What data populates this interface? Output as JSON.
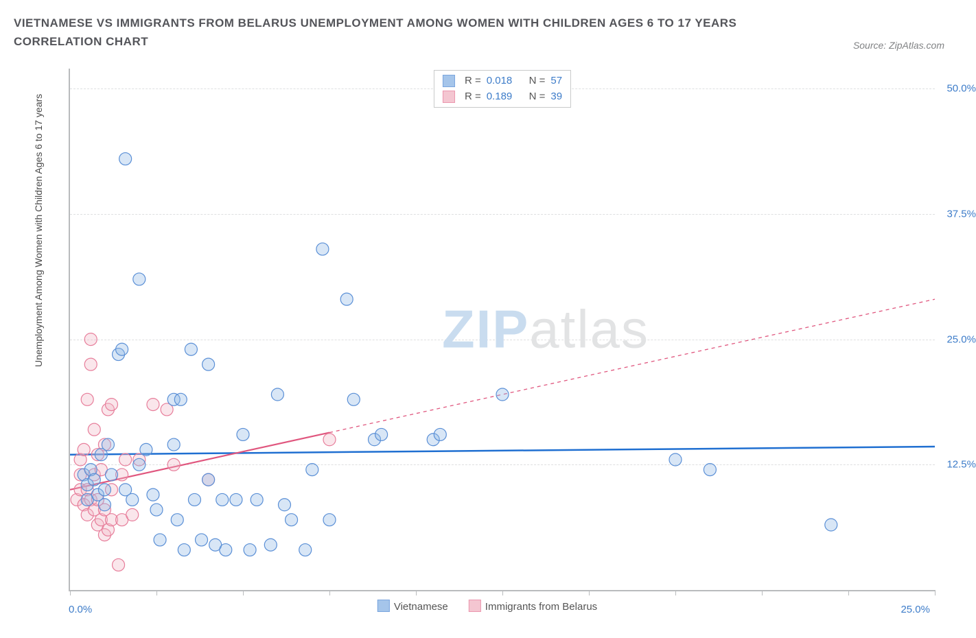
{
  "title_line1": "VIETNAMESE VS IMMIGRANTS FROM BELARUS UNEMPLOYMENT AMONG WOMEN WITH CHILDREN AGES 6 TO 17 YEARS",
  "title_line2": "CORRELATION CHART",
  "source_label": "Source: ZipAtlas.com",
  "y_axis_label": "Unemployment Among Women with Children Ages 6 to 17 years",
  "watermark_zip": "ZIP",
  "watermark_atlas": "atlas",
  "chart": {
    "type": "scatter",
    "xlim": [
      0,
      25
    ],
    "ylim": [
      0,
      52
    ],
    "x_tick_left": "0.0%",
    "x_tick_right": "25.0%",
    "x_minor_ticks": [
      0,
      2.5,
      5,
      7.5,
      10,
      12.5,
      15,
      17.5,
      20,
      22.5,
      25
    ],
    "y_ticks": [
      {
        "v": 12.5,
        "label": "12.5%"
      },
      {
        "v": 25.0,
        "label": "25.0%"
      },
      {
        "v": 37.5,
        "label": "37.5%"
      },
      {
        "v": 50.0,
        "label": "50.0%"
      }
    ],
    "grid_color": "#dedfe0",
    "axis_color": "#b9bbbd",
    "background": "#ffffff",
    "marker_radius": 9,
    "marker_stroke_width": 1.2,
    "marker_fill_opacity": 0.35,
    "series": [
      {
        "name": "Vietnamese",
        "color_fill": "#8fb7e6",
        "color_stroke": "#5a8fd6",
        "r_value": "0.018",
        "n_value": "57",
        "trend": {
          "x1": 0,
          "y1": 13.5,
          "x2": 25,
          "y2": 14.3,
          "solid_until_x": 25,
          "color": "#1f6fd1",
          "width": 2.5
        },
        "points": [
          [
            0.4,
            11.5
          ],
          [
            0.5,
            9.0
          ],
          [
            0.5,
            10.5
          ],
          [
            0.6,
            12.0
          ],
          [
            0.7,
            11.0
          ],
          [
            0.8,
            9.5
          ],
          [
            0.9,
            13.5
          ],
          [
            1.0,
            10.0
          ],
          [
            1.0,
            8.5
          ],
          [
            1.1,
            14.5
          ],
          [
            1.2,
            11.5
          ],
          [
            1.4,
            23.5
          ],
          [
            1.5,
            24.0
          ],
          [
            1.6,
            10.0
          ],
          [
            1.6,
            43.0
          ],
          [
            1.8,
            9.0
          ],
          [
            2.0,
            12.5
          ],
          [
            2.0,
            31.0
          ],
          [
            2.2,
            14.0
          ],
          [
            2.4,
            9.5
          ],
          [
            2.5,
            8.0
          ],
          [
            2.6,
            5.0
          ],
          [
            3.0,
            19.0
          ],
          [
            3.0,
            14.5
          ],
          [
            3.1,
            7.0
          ],
          [
            3.2,
            19.0
          ],
          [
            3.3,
            4.0
          ],
          [
            3.5,
            24.0
          ],
          [
            3.6,
            9.0
          ],
          [
            3.8,
            5.0
          ],
          [
            4.0,
            11.0
          ],
          [
            4.0,
            22.5
          ],
          [
            4.2,
            4.5
          ],
          [
            4.4,
            9.0
          ],
          [
            4.5,
            4.0
          ],
          [
            4.8,
            9.0
          ],
          [
            5.0,
            15.5
          ],
          [
            5.2,
            4.0
          ],
          [
            5.4,
            9.0
          ],
          [
            5.8,
            4.5
          ],
          [
            6.0,
            19.5
          ],
          [
            6.2,
            8.5
          ],
          [
            6.4,
            7.0
          ],
          [
            6.8,
            4.0
          ],
          [
            7.0,
            12.0
          ],
          [
            7.3,
            34.0
          ],
          [
            7.5,
            7.0
          ],
          [
            8.0,
            29.0
          ],
          [
            8.2,
            19.0
          ],
          [
            8.8,
            15.0
          ],
          [
            10.5,
            15.0
          ],
          [
            10.7,
            15.5
          ],
          [
            12.5,
            19.5
          ],
          [
            17.5,
            13.0
          ],
          [
            18.5,
            12.0
          ],
          [
            22.0,
            6.5
          ],
          [
            9.0,
            15.5
          ]
        ]
      },
      {
        "name": "Immigrants from Belarus",
        "color_fill": "#f2b8c6",
        "color_stroke": "#e77d9a",
        "r_value": "0.189",
        "n_value": "39",
        "trend": {
          "x1": 0,
          "y1": 10.0,
          "x2": 25,
          "y2": 29.0,
          "solid_until_x": 7.5,
          "color": "#e0567e",
          "width": 2.2
        },
        "points": [
          [
            0.2,
            9.0
          ],
          [
            0.3,
            10.0
          ],
          [
            0.3,
            11.5
          ],
          [
            0.3,
            13.0
          ],
          [
            0.4,
            8.5
          ],
          [
            0.4,
            14.0
          ],
          [
            0.5,
            7.5
          ],
          [
            0.5,
            10.0
          ],
          [
            0.5,
            19.0
          ],
          [
            0.6,
            9.0
          ],
          [
            0.6,
            22.5
          ],
          [
            0.6,
            25.0
          ],
          [
            0.7,
            8.0
          ],
          [
            0.7,
            11.5
          ],
          [
            0.7,
            16.0
          ],
          [
            0.8,
            6.5
          ],
          [
            0.8,
            9.0
          ],
          [
            0.8,
            13.5
          ],
          [
            0.9,
            7.0
          ],
          [
            0.9,
            12.0
          ],
          [
            1.0,
            5.5
          ],
          [
            1.0,
            8.0
          ],
          [
            1.0,
            14.5
          ],
          [
            1.1,
            6.0
          ],
          [
            1.1,
            18.0
          ],
          [
            1.2,
            7.0
          ],
          [
            1.2,
            10.0
          ],
          [
            1.2,
            18.5
          ],
          [
            1.4,
            2.5
          ],
          [
            1.5,
            7.0
          ],
          [
            1.5,
            11.5
          ],
          [
            1.6,
            13.0
          ],
          [
            1.8,
            7.5
          ],
          [
            2.0,
            13.0
          ],
          [
            2.4,
            18.5
          ],
          [
            2.8,
            18.0
          ],
          [
            3.0,
            12.5
          ],
          [
            4.0,
            11.0
          ],
          [
            7.5,
            15.0
          ]
        ]
      }
    ],
    "bottom_legend": [
      {
        "label": "Vietnamese",
        "fill": "#8fb7e6",
        "stroke": "#5a8fd6"
      },
      {
        "label": "Immigrants from Belarus",
        "fill": "#f2b8c6",
        "stroke": "#e77d9a"
      }
    ]
  }
}
